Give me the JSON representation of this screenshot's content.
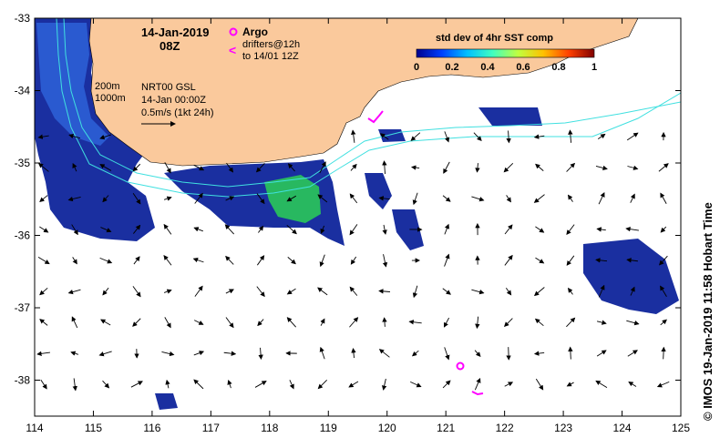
{
  "map": {
    "title_date": "14-Jan-2019",
    "title_time": "08Z",
    "colorbar": {
      "title": "std dev of 4hr SST comp",
      "ticks": [
        "0",
        "0.2",
        "0.4",
        "0.6",
        "0.8",
        "1"
      ],
      "colors": [
        "#00008f",
        "#0040ff",
        "#00c0ff",
        "#40ffbf",
        "#c0ff40",
        "#ffc000",
        "#ff4000",
        "#800000"
      ]
    },
    "argo_legend": {
      "argo_label": "Argo",
      "drifter_line1": "drifters@12h",
      "drifter_line2": "to 14/01 12Z",
      "color": "#ff00ff"
    },
    "isobath_legend": {
      "label_200m": "200m",
      "label_1000m": "1000m"
    },
    "current_legend": {
      "line1": "NRT00 GSL",
      "line2": "14-Jan 00:00Z",
      "line3": "0.5m/s (1kt 24h)"
    },
    "x_ticks": [
      "114",
      "115",
      "116",
      "117",
      "118",
      "119",
      "120",
      "121",
      "122",
      "123",
      "124",
      "125"
    ],
    "y_ticks": [
      "-33",
      "-34",
      "-35",
      "-36",
      "-37",
      "-38"
    ],
    "credit": "© IMOS 19-Jan-2019 11:58 Hobart Time",
    "land_color": "#fac99c",
    "isobath_color": "#40e0e0"
  }
}
